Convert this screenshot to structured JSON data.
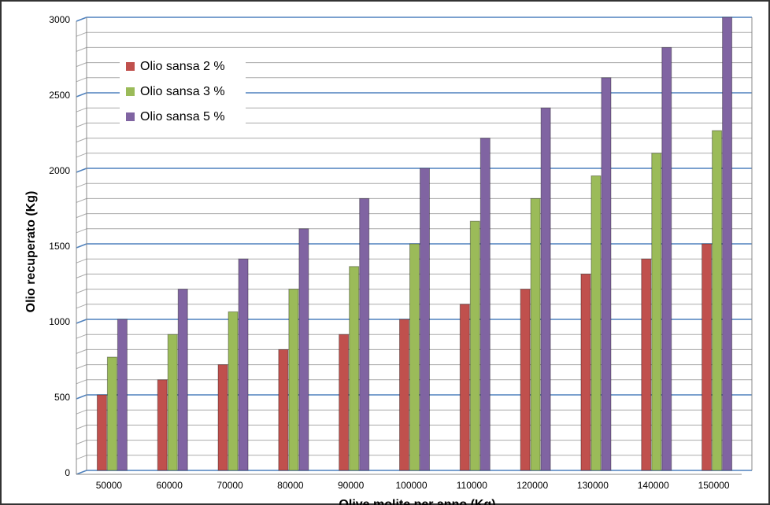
{
  "chart_data": {
    "type": "bar",
    "x_label": "Olive molite per anno (Kg)",
    "y_label": "Olio recuperato (Kg)",
    "categories": [
      "50000",
      "60000",
      "70000",
      "80000",
      "90000",
      "100000",
      "110000",
      "120000",
      "130000",
      "140000",
      "150000"
    ],
    "series": [
      {
        "name": "Olio sansa 2 %",
        "color": "#c0504d",
        "values": [
          500,
          600,
          700,
          800,
          900,
          1000,
          1100,
          1200,
          1300,
          1400,
          1500
        ]
      },
      {
        "name": "Olio sansa 3 %",
        "color": "#9bbb59",
        "values": [
          750,
          900,
          1050,
          1200,
          1350,
          1500,
          1650,
          1800,
          1950,
          2100,
          2250
        ]
      },
      {
        "name": "Olio sansa 5 %",
        "color": "#8064a2",
        "values": [
          1000,
          1200,
          1400,
          1600,
          1800,
          2000,
          2200,
          2400,
          2600,
          2800,
          3000
        ]
      }
    ],
    "ylim": [
      0,
      3000
    ],
    "yticks": [
      0,
      500,
      1000,
      1500,
      2000,
      2500,
      3000
    ],
    "grid": true,
    "minor_grid": true,
    "legend": "top-left"
  }
}
